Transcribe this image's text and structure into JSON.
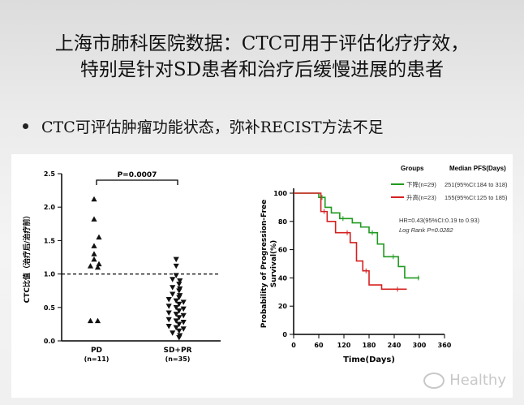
{
  "slide": {
    "title_line1": "上海市肺科医院数据：CTC可用于评估化疗疗效，",
    "title_line2": "特别是针对SD患者和治疗后缓慢进展的患者",
    "bullet": "CTC可评估肿瘤功能状态，弥补RECIST方法不足",
    "watermark": "Healthy"
  },
  "chart_data": [
    {
      "type": "scatter",
      "ylabel": "CTC比值（治疗后/治疗前）",
      "ylim": [
        0,
        2.5
      ],
      "yticks": [
        "0.0",
        "0.5",
        "1.0",
        "1.5",
        "2.0",
        "2.5"
      ],
      "categories": [
        "PD\n(n=11)",
        "SD+PR\n(n=35)"
      ],
      "category_labels": [
        {
          "name": "PD",
          "n": "(n=11)"
        },
        {
          "name": "SD+PR",
          "n": "(n=35)"
        }
      ],
      "reference_line": 1.0,
      "annotation": "P=0.0007",
      "series": [
        {
          "marker": "triangle-up",
          "values": [
            2.12,
            1.82,
            1.55,
            1.42,
            1.3,
            1.22,
            1.15,
            1.12,
            1.1,
            0.3,
            0.3
          ]
        },
        {
          "marker": "triangle-down",
          "values": [
            1.22,
            1.12,
            0.98,
            0.92,
            0.9,
            0.85,
            0.8,
            0.78,
            0.75,
            0.7,
            0.68,
            0.65,
            0.62,
            0.6,
            0.58,
            0.55,
            0.52,
            0.5,
            0.48,
            0.45,
            0.42,
            0.4,
            0.38,
            0.35,
            0.32,
            0.3,
            0.28,
            0.25,
            0.22,
            0.2,
            0.18,
            0.15,
            0.12,
            0.08,
            0.05
          ]
        }
      ]
    },
    {
      "type": "line",
      "xlabel": "Time(Days)",
      "ylabel": "Probability of Progression-Free Survival(%)",
      "xlim": [
        0,
        360
      ],
      "ylim": [
        0,
        100
      ],
      "xticks": [
        "0",
        "60",
        "120",
        "180",
        "240",
        "300",
        "360"
      ],
      "yticks": [
        "0",
        "20",
        "40",
        "60",
        "80",
        "100"
      ],
      "legend_header": [
        "Groups",
        "Median PFS(Days)"
      ],
      "hr_text": "HR=0.43(95%CI:0.19 to 0.93)",
      "logrank_text": "Log Rank P=0.0282",
      "series": [
        {
          "name": "下降(n=29)",
          "stat": "251(95%CI:184 to 318)",
          "color": "#1f9a1f",
          "x": [
            0,
            30,
            60,
            75,
            90,
            110,
            140,
            160,
            180,
            200,
            215,
            230,
            250,
            265,
            290,
            300
          ],
          "y": [
            100,
            100,
            97,
            90,
            86,
            82,
            79,
            76,
            72,
            64,
            55,
            55,
            48,
            40,
            40,
            40
          ]
        },
        {
          "name": "升高(n=23)",
          "stat": "155(95%CI:125 to 185)",
          "color": "#d62020",
          "x": [
            0,
            50,
            65,
            80,
            100,
            120,
            135,
            150,
            165,
            180,
            210,
            240,
            270
          ],
          "y": [
            100,
            100,
            87,
            80,
            72,
            72,
            65,
            52,
            45,
            35,
            32,
            32,
            32
          ]
        }
      ]
    }
  ]
}
